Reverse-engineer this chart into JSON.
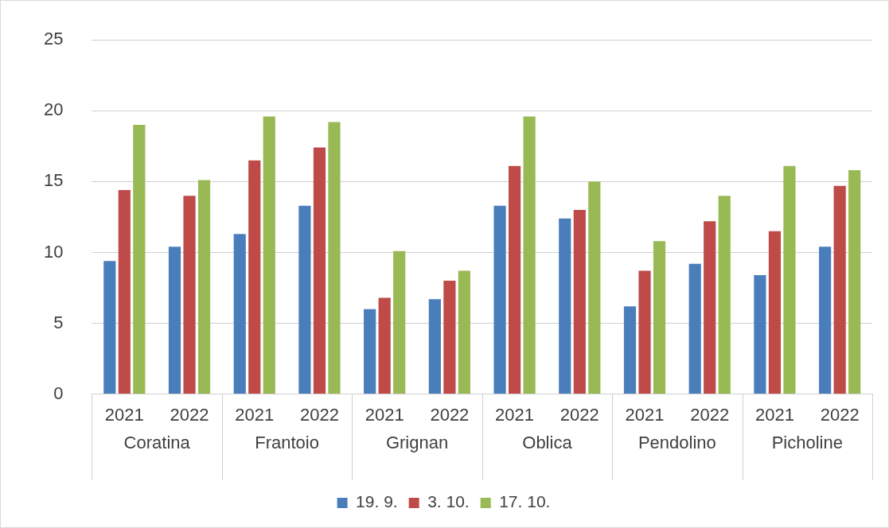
{
  "chart_data": {
    "type": "bar",
    "categories": [
      "2021",
      "2022",
      "2021",
      "2022",
      "2021",
      "2022",
      "2021",
      "2022",
      "2021",
      "2022",
      "2021",
      "2022"
    ],
    "series": [
      {
        "name": "19. 9.",
        "color": "#4a7ebb",
        "values": [
          9.4,
          10.4,
          11.3,
          13.3,
          6.0,
          6.7,
          13.3,
          12.4,
          6.2,
          9.2,
          8.4,
          10.4
        ]
      },
      {
        "name": "3. 10.",
        "color": "#be4b48",
        "values": [
          14.4,
          14.0,
          16.5,
          17.4,
          6.8,
          8.0,
          16.1,
          13.0,
          8.7,
          12.2,
          11.5,
          14.7
        ]
      },
      {
        "name": "17. 10.",
        "color": "#98b954",
        "values": [
          19.0,
          15.1,
          19.6,
          19.2,
          10.1,
          8.7,
          19.6,
          15.0,
          10.8,
          14.0,
          16.1,
          15.8
        ]
      }
    ],
    "annotations": [
      "Coratina",
      "Frantoio",
      "Grignan",
      "Oblica",
      "Pendolino",
      "Picholine"
    ],
    "ylim": [
      0,
      25
    ],
    "yticks": [
      0,
      5,
      10,
      15,
      20,
      25
    ],
    "grid": "y",
    "legend": "bottom"
  }
}
